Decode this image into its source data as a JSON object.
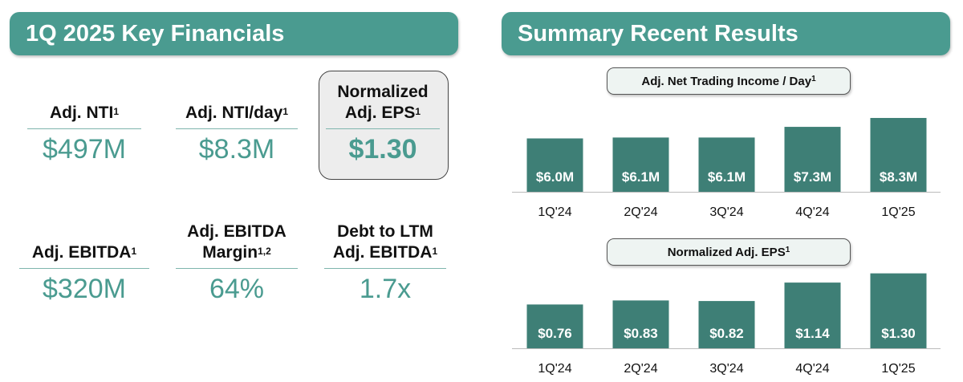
{
  "left_panel": {
    "title": "1Q 2025 Key Financials",
    "metrics": [
      {
        "label": "Adj. NTI",
        "sup": "1",
        "value": "$497M"
      },
      {
        "label": "Adj. NTI/day",
        "sup": "1",
        "value": "$8.3M"
      },
      {
        "label": "Normalized\nAdj. EPS",
        "sup": "1",
        "value": "$1.30"
      },
      {
        "label": "Adj. EBITDA",
        "sup": "1",
        "value": "$320M"
      },
      {
        "label": "Adj. EBITDA\nMargin",
        "sup": "1,2",
        "value": "64%"
      },
      {
        "label": "Debt to LTM\nAdj. EBITDA",
        "sup": "1",
        "value": "1.7x"
      }
    ]
  },
  "right_panel": {
    "title": "Summary Recent Results"
  },
  "colors": {
    "accent": "#4a9b90",
    "bar": "#3e7f76",
    "highlight_box": "#ededed"
  },
  "chart_data": [
    {
      "type": "bar",
      "title": "Adj. Net Trading Income / Day",
      "title_sup": "1",
      "categories": [
        "1Q'24",
        "2Q'24",
        "3Q'24",
        "4Q'24",
        "1Q'25"
      ],
      "values": [
        6.0,
        6.1,
        6.1,
        7.3,
        8.3
      ],
      "data_labels": [
        "$6.0M",
        "$6.1M",
        "$6.1M",
        "$7.3M",
        "$8.3M"
      ],
      "ylim": [
        0,
        9.2
      ],
      "grid": false
    },
    {
      "type": "bar",
      "title": "Normalized Adj. EPS",
      "title_sup": "1",
      "categories": [
        "1Q'24",
        "2Q'24",
        "3Q'24",
        "4Q'24",
        "1Q'25"
      ],
      "values": [
        0.76,
        0.83,
        0.82,
        1.14,
        1.3
      ],
      "data_labels": [
        "$0.76",
        "$0.83",
        "$0.82",
        "$1.14",
        "$1.30"
      ],
      "ylim": [
        0,
        1.42
      ],
      "grid": false
    }
  ]
}
